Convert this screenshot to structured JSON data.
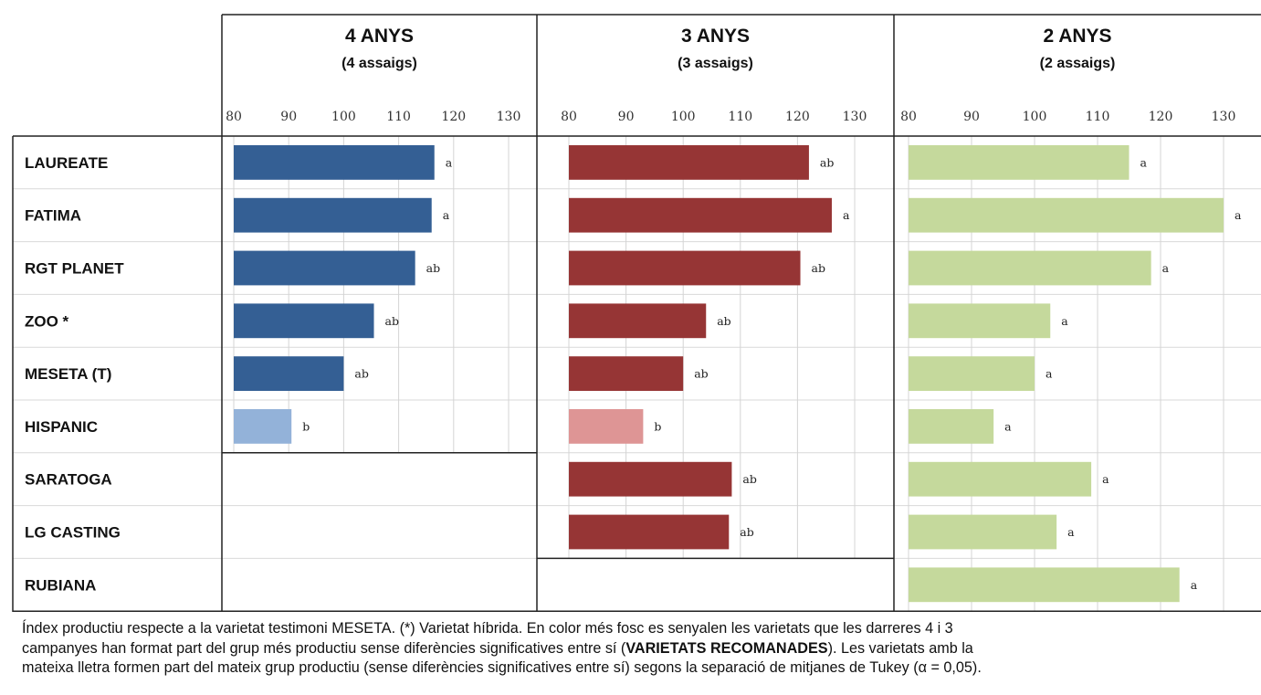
{
  "chart_data": {
    "type": "bar",
    "orientation": "horizontal",
    "categories": [
      "LAUREATE",
      "FATIMA",
      "RGT PLANET",
      "ZOO *",
      "MESETA (T)",
      "HISPANIC",
      "SARATOGA",
      "LG CASTING",
      "RUBIANA"
    ],
    "ticks": [
      "80",
      "90",
      "100",
      "110",
      "120",
      "130"
    ],
    "xlim": [
      80,
      130
    ],
    "grid": true,
    "panels": [
      {
        "title": "4 ANYS",
        "subtitle": "(4 assaigs)",
        "values": [
          116.5,
          116,
          113,
          105.5,
          100,
          90.5,
          null,
          null,
          null
        ],
        "letters": [
          "a",
          "a",
          "ab",
          "ab",
          "ab",
          "b",
          "",
          "",
          ""
        ],
        "colors": [
          "#345f94",
          "#345f94",
          "#345f94",
          "#345f94",
          "#345f94",
          "#93b2d9",
          "",
          "",
          ""
        ]
      },
      {
        "title": "3 ANYS",
        "subtitle": "(3 assaigs)",
        "values": [
          122,
          126,
          120.5,
          104,
          100,
          93,
          108.5,
          108,
          null
        ],
        "letters": [
          "ab",
          "a",
          "ab",
          "ab",
          "ab",
          "b",
          "ab",
          "ab",
          ""
        ],
        "colors": [
          "#963535",
          "#963535",
          "#963535",
          "#963535",
          "#963535",
          "#de9595",
          "#963535",
          "#963535",
          ""
        ]
      },
      {
        "title": "2 ANYS",
        "subtitle": "(2 assaigs)",
        "values": [
          115,
          130,
          118.5,
          102.5,
          100,
          93.5,
          109,
          103.5,
          123
        ],
        "letters": [
          "a",
          "a",
          "a",
          "a",
          "a",
          "a",
          "a",
          "a",
          "a"
        ],
        "colors": [
          "#c5d99c",
          "#c5d99c",
          "#c5d99c",
          "#c5d99c",
          "#c5d99c",
          "#c5d99c",
          "#c5d99c",
          "#c5d99c",
          "#c5d99c"
        ]
      }
    ]
  },
  "footnote": {
    "part1": "Índex productiu respecte a la varietat testimoni MESETA. (*) Varietat híbrida. En color més fosc es senyalen les varietats que les darreres 4 i 3",
    "part2": "campanyes han format part del grup més productiu sense diferències significatives entre sí (",
    "bold": "VARIETATS RECOMANADES",
    "part3": "). Les varietats amb la",
    "part4": "mateixa lletra formen part del mateix grup productiu (sense diferències significatives entre sí) segons la separació de mitjanes de Tukey (α = 0,05)."
  }
}
